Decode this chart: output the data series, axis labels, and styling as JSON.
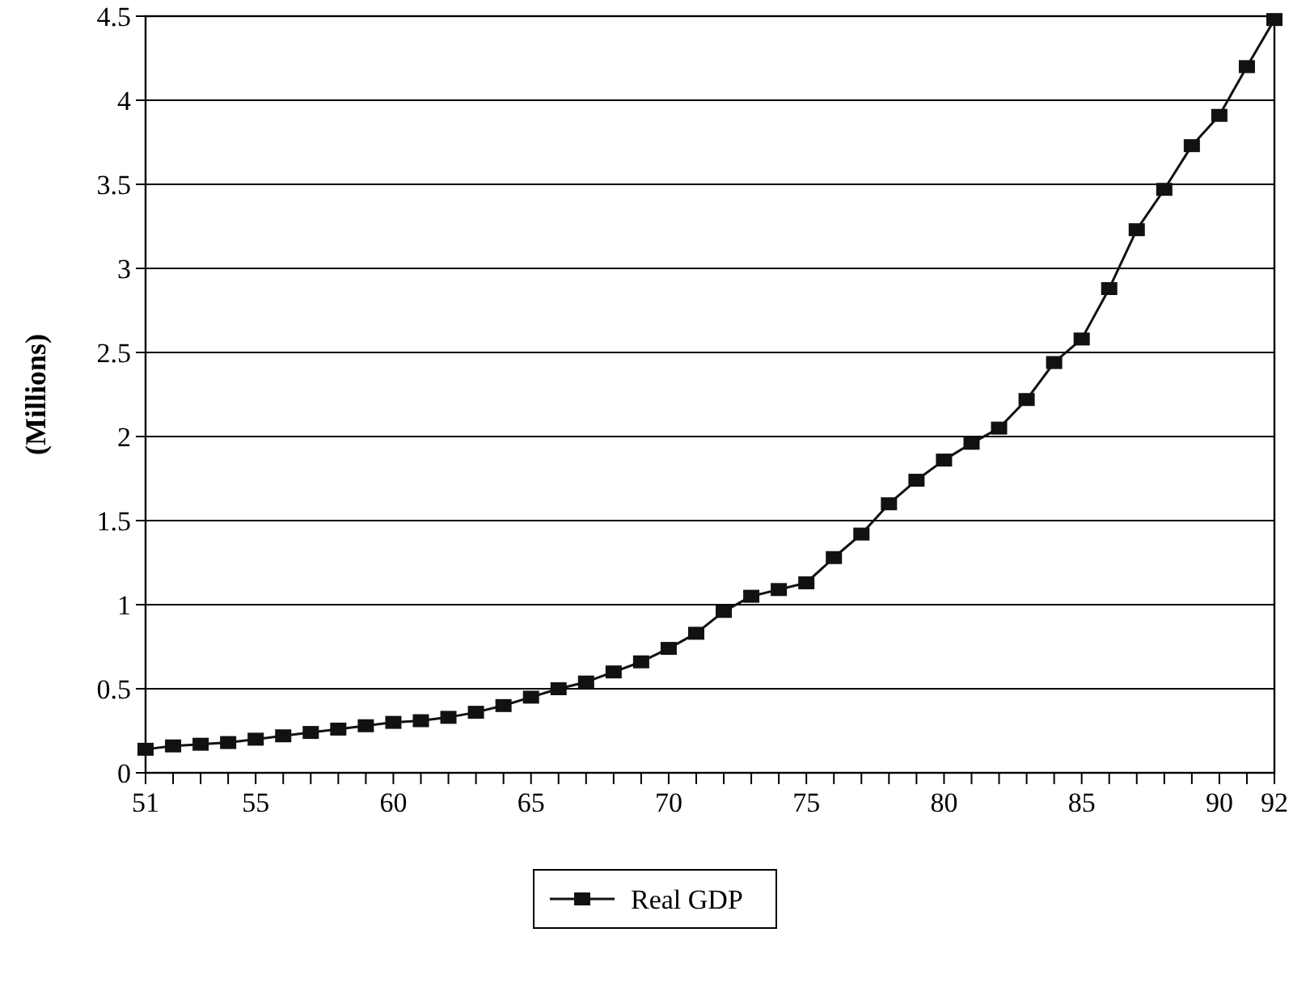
{
  "chart_data": {
    "type": "line",
    "ylabel": "(Millions)",
    "x": [
      51,
      52,
      53,
      54,
      55,
      56,
      57,
      58,
      59,
      60,
      61,
      62,
      63,
      64,
      65,
      66,
      67,
      68,
      69,
      70,
      71,
      72,
      73,
      74,
      75,
      76,
      77,
      78,
      79,
      80,
      81,
      82,
      83,
      84,
      85,
      86,
      87,
      88,
      89,
      90,
      91,
      92
    ],
    "series": [
      {
        "name": "Real GDP",
        "color": "#111111",
        "values": [
          0.14,
          0.16,
          0.17,
          0.18,
          0.2,
          0.22,
          0.24,
          0.26,
          0.28,
          0.3,
          0.31,
          0.33,
          0.36,
          0.4,
          0.45,
          0.5,
          0.54,
          0.6,
          0.66,
          0.74,
          0.83,
          0.96,
          1.05,
          1.09,
          1.13,
          1.28,
          1.42,
          1.6,
          1.74,
          1.86,
          1.96,
          2.05,
          2.22,
          2.44,
          2.58,
          2.88,
          3.23,
          3.47,
          3.73,
          3.91,
          4.2,
          4.48
        ]
      }
    ],
    "xlim": [
      51,
      92
    ],
    "xticks": [
      51,
      {
        "value": 52,
        "label": null
      },
      {
        "value": 53,
        "label": null
      },
      {
        "value": 54,
        "label": null
      },
      55,
      {
        "value": 56,
        "label": null
      },
      {
        "value": 57,
        "label": null
      },
      {
        "value": 58,
        "label": null
      },
      {
        "value": 59,
        "label": null
      },
      60,
      {
        "value": 61,
        "label": null
      },
      {
        "value": 62,
        "label": null
      },
      {
        "value": 63,
        "label": null
      },
      {
        "value": 64,
        "label": null
      },
      65,
      {
        "value": 66,
        "label": null
      },
      {
        "value": 67,
        "label": null
      },
      {
        "value": 68,
        "label": null
      },
      {
        "value": 69,
        "label": null
      },
      70,
      {
        "value": 71,
        "label": null
      },
      {
        "value": 72,
        "label": null
      },
      {
        "value": 73,
        "label": null
      },
      {
        "value": 74,
        "label": null
      },
      75,
      {
        "value": 76,
        "label": null
      },
      {
        "value": 77,
        "label": null
      },
      {
        "value": 78,
        "label": null
      },
      {
        "value": 79,
        "label": null
      },
      80,
      {
        "value": 81,
        "label": null
      },
      {
        "value": 82,
        "label": null
      },
      {
        "value": 83,
        "label": null
      },
      {
        "value": 84,
        "label": null
      },
      85,
      {
        "value": 86,
        "label": null
      },
      {
        "value": 87,
        "label": null
      },
      {
        "value": 88,
        "label": null
      },
      {
        "value": 89,
        "label": null
      },
      90,
      {
        "value": 91,
        "label": null
      },
      92
    ],
    "ylim": [
      0,
      4.5
    ],
    "yticks": [
      0,
      0.5,
      1,
      1.5,
      2,
      2.5,
      3,
      3.5,
      4,
      4.5
    ],
    "grid": "y",
    "legend": "bottom",
    "marker": "square",
    "line_style": "solid"
  }
}
